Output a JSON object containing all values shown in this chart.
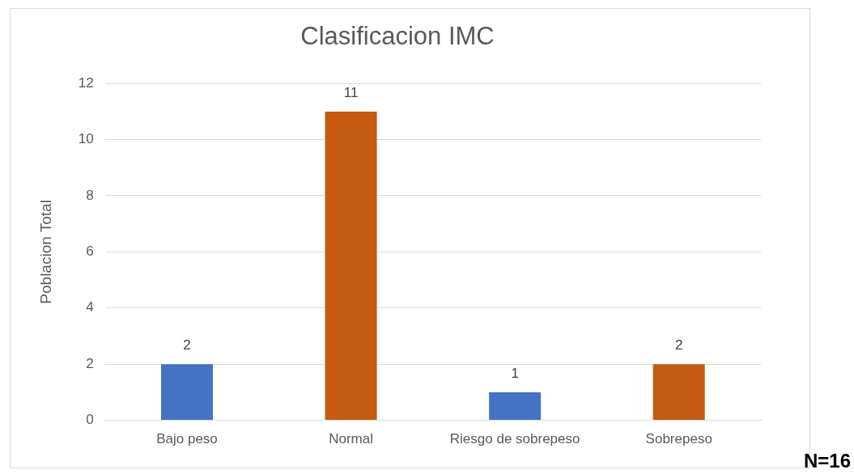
{
  "chart_data": {
    "type": "bar",
    "title": "Clasificacion IMC",
    "ylabel": "Poblacion Total",
    "categories": [
      "Bajo peso",
      "Normal",
      "Riesgo de sobrepeso",
      "Sobrepeso"
    ],
    "values": [
      2,
      11,
      1,
      2
    ],
    "colors": [
      "#4472c4",
      "#c55a11",
      "#4472c4",
      "#c55a11"
    ],
    "ylim": [
      0,
      12
    ],
    "yticks": [
      0,
      2,
      4,
      6,
      8,
      10,
      12
    ],
    "grid": "y",
    "data_labels": true,
    "annotations": [
      "N=16"
    ]
  }
}
